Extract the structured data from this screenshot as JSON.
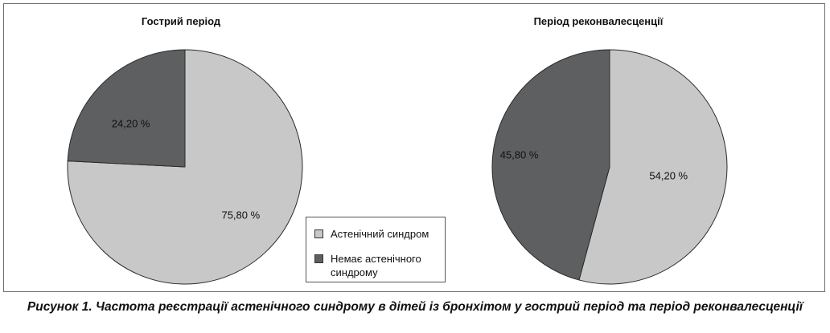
{
  "chart_data": [
    {
      "type": "pie",
      "title": "Гострий період",
      "categories": [
        "Астенічний синдром",
        "Немає астенічного синдрому"
      ],
      "values": [
        75.8,
        24.2
      ],
      "labels": [
        "75,80 %",
        "24,20 %"
      ],
      "colors": [
        "#c8c8c8",
        "#5e5f61"
      ],
      "start_angle_deg": 0,
      "direction": "clockwise"
    },
    {
      "type": "pie",
      "title": "Період реконвалесценції",
      "categories": [
        "Астенічний синдром",
        "Немає астенічного синдрому"
      ],
      "values": [
        54.2,
        45.8
      ],
      "labels": [
        "54,20 %",
        "45,80 %"
      ],
      "colors": [
        "#c8c8c8",
        "#5e5f61"
      ],
      "start_angle_deg": 0,
      "direction": "clockwise"
    }
  ],
  "legend": {
    "items": [
      {
        "label": "Астенічний синдром",
        "color": "#c8c8c8"
      },
      {
        "label": "Немає астенічного синдрому",
        "color": "#5e5f61"
      }
    ]
  },
  "caption": "Рисунок 1. Частота реєстрації астенічного синдрому в дітей із бронхітом у гострий період та період реконвалесценції"
}
